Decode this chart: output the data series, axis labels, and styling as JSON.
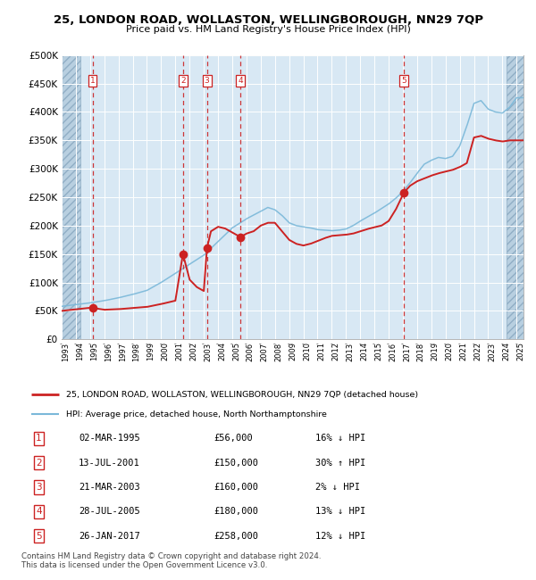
{
  "title": "25, LONDON ROAD, WOLLASTON, WELLINGBOROUGH, NN29 7QP",
  "subtitle": "Price paid vs. HM Land Registry's House Price Index (HPI)",
  "legend_line1": "25, LONDON ROAD, WOLLASTON, WELLINGBOROUGH, NN29 7QP (detached house)",
  "legend_line2": "HPI: Average price, detached house, North Northamptonshire",
  "footer": "Contains HM Land Registry data © Crown copyright and database right 2024.\nThis data is licensed under the Open Government Licence v3.0.",
  "sale_dates_x": [
    1995.17,
    2001.53,
    2003.22,
    2005.57,
    2017.07
  ],
  "sale_prices_y": [
    56000,
    150000,
    160000,
    180000,
    258000
  ],
  "sale_labels": [
    "1",
    "2",
    "3",
    "4",
    "5"
  ],
  "hpi_color": "#7ab8d9",
  "price_color": "#cc2222",
  "vline_color": "#cc2222",
  "plot_bg_color": "#d8e8f4",
  "hatch_color": "#b8cfe0",
  "ylim": [
    0,
    500000
  ],
  "xlim": [
    1993.0,
    2025.5
  ],
  "yticks": [
    0,
    50000,
    100000,
    150000,
    200000,
    250000,
    300000,
    350000,
    400000,
    450000,
    500000
  ],
  "xticks": [
    1993,
    1994,
    1995,
    1996,
    1997,
    1998,
    1999,
    2000,
    2001,
    2002,
    2003,
    2004,
    2005,
    2006,
    2007,
    2008,
    2009,
    2010,
    2011,
    2012,
    2013,
    2014,
    2015,
    2016,
    2017,
    2018,
    2019,
    2020,
    2021,
    2022,
    2023,
    2024,
    2025
  ],
  "table_rows": [
    [
      "1",
      "02-MAR-1995",
      "£56,000",
      "16% ↓ HPI"
    ],
    [
      "2",
      "13-JUL-2001",
      "£150,000",
      "30% ↑ HPI"
    ],
    [
      "3",
      "21-MAR-2003",
      "£160,000",
      "2% ↓ HPI"
    ],
    [
      "4",
      "28-JUL-2005",
      "£180,000",
      "13% ↓ HPI"
    ],
    [
      "5",
      "26-JAN-2017",
      "£258,000",
      "12% ↓ HPI"
    ]
  ],
  "hpi_ctrl_x": [
    1993,
    1994,
    1995,
    1996,
    1997,
    1998,
    1999,
    2000,
    2001,
    2002,
    2003,
    2004,
    2005,
    2006,
    2007,
    2007.5,
    2008,
    2008.5,
    2009,
    2009.5,
    2010,
    2010.5,
    2011,
    2011.5,
    2012,
    2012.5,
    2013,
    2013.5,
    2014,
    2014.5,
    2015,
    2015.5,
    2016,
    2016.5,
    2017,
    2017.5,
    2018,
    2018.5,
    2019,
    2019.5,
    2020,
    2020.5,
    2021,
    2021.5,
    2022,
    2022.5,
    2023,
    2023.5,
    2024,
    2024.5,
    2025
  ],
  "hpi_ctrl_y": [
    58000,
    61000,
    64000,
    68000,
    73000,
    79000,
    86000,
    100000,
    116000,
    132000,
    148000,
    172000,
    196000,
    212000,
    225000,
    232000,
    228000,
    218000,
    205000,
    200000,
    198000,
    196000,
    193000,
    192000,
    191000,
    192000,
    194000,
    200000,
    208000,
    215000,
    222000,
    230000,
    238000,
    248000,
    260000,
    275000,
    292000,
    308000,
    315000,
    320000,
    318000,
    322000,
    340000,
    375000,
    415000,
    420000,
    405000,
    400000,
    398000,
    408000,
    425000
  ],
  "price_ctrl_x": [
    1993,
    1995.17,
    1995.5,
    1996,
    1997,
    1998,
    1999,
    2000,
    2001.0,
    2001.53,
    2002.0,
    2002.5,
    2003.0,
    2003.22,
    2003.5,
    2004.0,
    2004.5,
    2005.0,
    2005.57,
    2005.8,
    2006.0,
    2006.5,
    2007.0,
    2007.5,
    2008.0,
    2008.5,
    2009.0,
    2009.5,
    2010.0,
    2010.5,
    2011.0,
    2011.5,
    2012.0,
    2012.5,
    2013.0,
    2013.5,
    2014.0,
    2014.5,
    2015.0,
    2015.5,
    2016.0,
    2016.5,
    2017.07,
    2017.5,
    2018.0,
    2018.5,
    2019.0,
    2019.5,
    2020.0,
    2020.5,
    2021.0,
    2021.5,
    2022.0,
    2022.5,
    2023.0,
    2023.5,
    2024.0,
    2024.5,
    2025.0
  ],
  "price_ctrl_y": [
    50000,
    56000,
    54000,
    52000,
    53000,
    55000,
    57000,
    62000,
    68000,
    150000,
    105000,
    92000,
    85000,
    160000,
    190000,
    198000,
    195000,
    188000,
    180000,
    183000,
    186000,
    190000,
    200000,
    205000,
    205000,
    190000,
    175000,
    168000,
    165000,
    168000,
    173000,
    178000,
    182000,
    183000,
    184000,
    186000,
    190000,
    194000,
    197000,
    200000,
    208000,
    228000,
    258000,
    270000,
    278000,
    283000,
    288000,
    292000,
    295000,
    298000,
    303000,
    310000,
    355000,
    358000,
    353000,
    350000,
    348000,
    350000,
    350000
  ]
}
